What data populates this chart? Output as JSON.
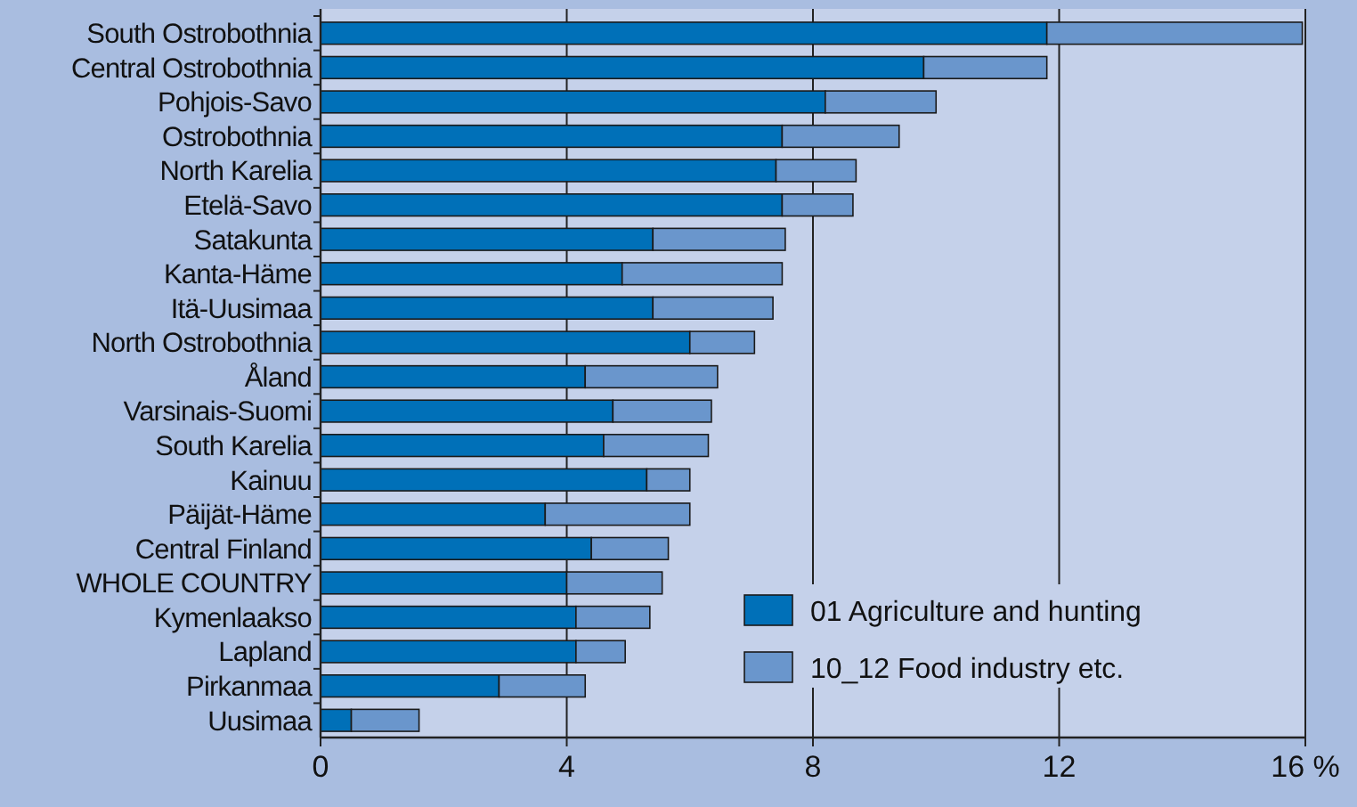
{
  "chart_data": {
    "type": "bar",
    "orientation": "horizontal",
    "stacked": true,
    "categories": [
      "South Ostrobothnia",
      "Central Ostrobothnia",
      "Pohjois-Savo",
      "Ostrobothnia",
      "North Karelia",
      "Etelä-Savo",
      "Satakunta",
      "Kanta-Häme",
      "Itä-Uusimaa",
      "North Ostrobothnia",
      "Åland",
      "Varsinais-Suomi",
      "South Karelia",
      "Kainuu",
      "Päijät-Häme",
      "Central Finland",
      "WHOLE COUNTRY",
      "Kymenlaakso",
      "Lapland",
      "Pirkanmaa",
      "Uusimaa"
    ],
    "series": [
      {
        "name": "01 Agriculture and hunting",
        "color": "#0070b8",
        "values": [
          11.8,
          9.8,
          8.2,
          7.5,
          7.4,
          7.5,
          5.4,
          4.9,
          5.4,
          6.0,
          4.3,
          4.75,
          4.6,
          5.3,
          3.65,
          4.4,
          4.0,
          4.15,
          4.15,
          2.9,
          0.5
        ]
      },
      {
        "name": "10_12 Food industry etc.",
        "color": "#6a96cc",
        "values": [
          4.15,
          2.0,
          1.8,
          1.9,
          1.3,
          1.15,
          2.15,
          2.6,
          1.95,
          1.05,
          2.15,
          1.6,
          1.7,
          0.7,
          2.35,
          1.25,
          1.55,
          1.2,
          0.8,
          1.4,
          1.1
        ]
      }
    ],
    "xlim": [
      0,
      16
    ],
    "xticks": [
      0,
      4,
      8,
      12,
      {
        "value": 16,
        "label": "16 %"
      }
    ],
    "grid": "x",
    "legend": "bottom right"
  }
}
